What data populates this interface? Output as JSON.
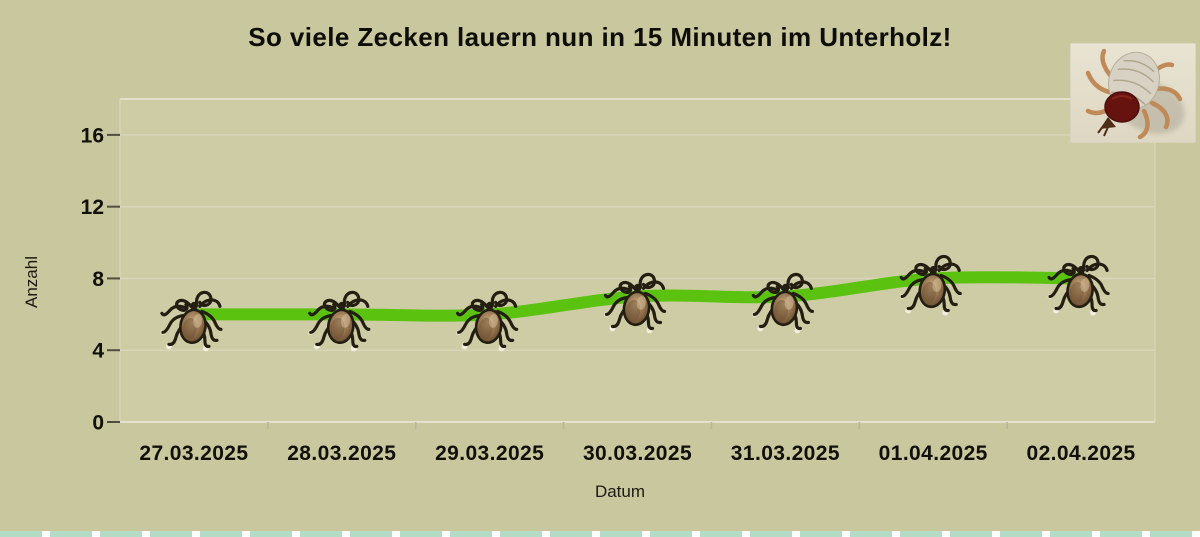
{
  "title": "So viele Zecken lauern nun in 15 Minuten im Unterholz!",
  "chart_data": {
    "type": "line",
    "title": "So viele Zecken lauern nun in 15 Minuten im Unterholz!",
    "categories": [
      "27.03.2025",
      "28.03.2025",
      "29.03.2025",
      "30.03.2025",
      "31.03.2025",
      "01.04.2025",
      "02.04.2025"
    ],
    "values": [
      6,
      6,
      6,
      7,
      7,
      8,
      8
    ],
    "xlabel": "Datum",
    "ylabel": "Anzahl",
    "ylim": [
      0,
      18
    ],
    "yticks": [
      0,
      4,
      8,
      12,
      16
    ],
    "grid": true,
    "legend_position": "none",
    "smooth": true,
    "marker": "tick-bug-icon"
  },
  "colors": {
    "page_bg": "#c9c79e",
    "plot_bg": "#cecca5",
    "plot_border_top": "#eceadb",
    "plot_border": "#d8d6bc",
    "gridline": "#d9d7bb",
    "y_tick_mark": "#4f4c40",
    "x_tick_mark": "#b7b59a",
    "text": "#12100a",
    "line_green": "#5bc30f",
    "bottom_strip_mint": "#b3dbc5"
  },
  "decor": {
    "corner_image": "tick-photo-icon",
    "bottom_strip": "pattern-strip"
  }
}
